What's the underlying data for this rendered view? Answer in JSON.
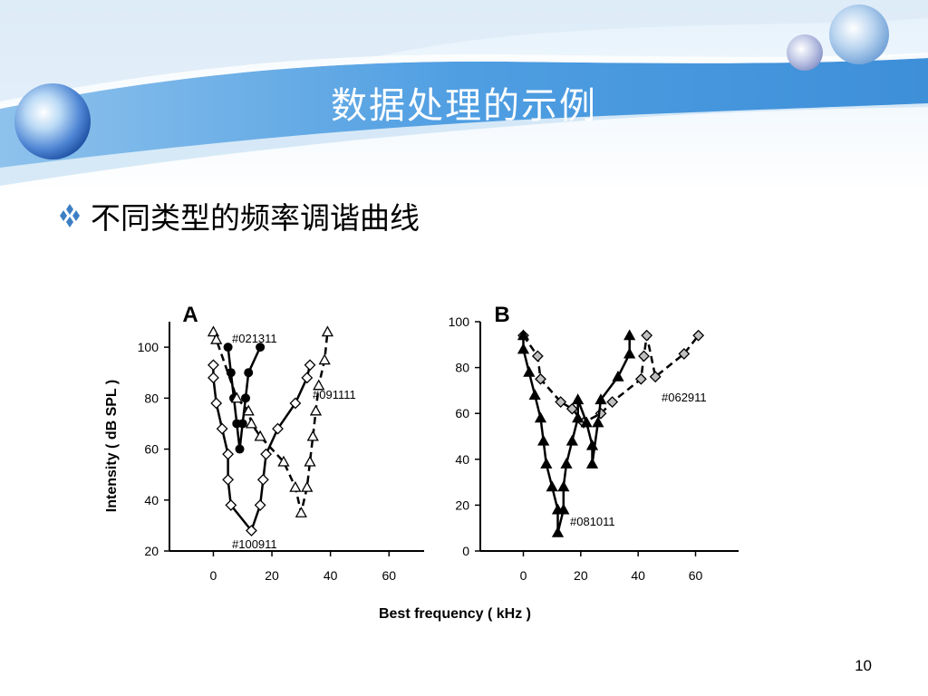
{
  "slide": {
    "title": "数据处理的示例",
    "bullet": "不同类型的频率调谐曲线",
    "page_number": "10"
  },
  "chart_data": [
    {
      "type": "line",
      "panel_label": "A",
      "ylabel": "Intensity ( dB SPL )",
      "xlabel": "Best frequency ( kHz )",
      "xlim": [
        -15,
        72
      ],
      "ylim": [
        20,
        110
      ],
      "xticks": [
        0,
        20,
        40,
        60
      ],
      "yticks": [
        20,
        40,
        60,
        80,
        100
      ],
      "grid": false,
      "series": [
        {
          "name": "#021311",
          "marker": "circle",
          "fill": "#000000",
          "line": "solid",
          "points": [
            [
              5,
              100
            ],
            [
              6,
              90
            ],
            [
              7,
              80
            ],
            [
              8,
              70
            ],
            [
              9,
              60
            ],
            [
              10,
              70
            ],
            [
              11,
              80
            ],
            [
              12,
              90
            ],
            [
              16,
              100
            ]
          ]
        },
        {
          "name": "#100911",
          "marker": "diamond",
          "fill": "#ffffff",
          "line": "solid",
          "points": [
            [
              0,
              93
            ],
            [
              0,
              88
            ],
            [
              1,
              78
            ],
            [
              3,
              68
            ],
            [
              5,
              58
            ],
            [
              5,
              48
            ],
            [
              6,
              38
            ],
            [
              13,
              28
            ],
            [
              16,
              38
            ],
            [
              17,
              48
            ],
            [
              18,
              58
            ],
            [
              22,
              68
            ],
            [
              28,
              78
            ],
            [
              32,
              88
            ],
            [
              33,
              93
            ]
          ]
        },
        {
          "name": "#091111",
          "marker": "triangle-open",
          "fill": "#ffffff",
          "line": "dashed",
          "points": [
            [
              0,
              106
            ],
            [
              1,
              103
            ],
            [
              8,
              80
            ],
            [
              12,
              75
            ],
            [
              13,
              70
            ],
            [
              16,
              65
            ],
            [
              24,
              55
            ],
            [
              28,
              45
            ],
            [
              30,
              35
            ],
            [
              32,
              45
            ],
            [
              33,
              55
            ],
            [
              34,
              65
            ],
            [
              35,
              75
            ],
            [
              36,
              85
            ],
            [
              38,
              95
            ],
            [
              39,
              106
            ]
          ]
        }
      ],
      "annotations": [
        "#021311",
        "#091111",
        "#100911"
      ]
    },
    {
      "type": "line",
      "panel_label": "B",
      "ylabel": "",
      "xlabel": "Best frequency ( kHz )",
      "xlim": [
        -15,
        75
      ],
      "ylim": [
        0,
        100
      ],
      "xticks": [
        0,
        20,
        40,
        60
      ],
      "yticks": [
        0,
        20,
        40,
        60,
        80,
        100
      ],
      "grid": false,
      "series": [
        {
          "name": "#062911",
          "marker": "diamond",
          "fill": "#c0c0c0",
          "line": "dashed",
          "points": [
            [
              0,
              94
            ],
            [
              5,
              85
            ],
            [
              6,
              75
            ],
            [
              13,
              65
            ],
            [
              17,
              62
            ],
            [
              21,
              56
            ],
            [
              27,
              60
            ],
            [
              31,
              65
            ],
            [
              41,
              75
            ],
            [
              42,
              85
            ],
            [
              43,
              94
            ],
            [
              46,
              76
            ],
            [
              56,
              86
            ],
            [
              61,
              94
            ]
          ]
        },
        {
          "name": "#081011",
          "marker": "triangle",
          "fill": "#000000",
          "line": "solid",
          "points": [
            [
              0,
              94
            ],
            [
              0,
              88
            ],
            [
              2,
              78
            ],
            [
              4,
              68
            ],
            [
              6,
              58
            ],
            [
              7,
              48
            ],
            [
              8,
              38
            ],
            [
              10,
              28
            ],
            [
              12,
              18
            ],
            [
              12,
              8
            ],
            [
              14,
              18
            ],
            [
              14,
              28
            ],
            [
              15,
              38
            ],
            [
              17,
              48
            ],
            [
              19,
              58
            ],
            [
              19,
              66
            ],
            [
              22,
              56
            ],
            [
              24,
              46
            ],
            [
              24,
              38
            ],
            [
              26,
              56
            ],
            [
              27,
              66
            ],
            [
              33,
              76
            ],
            [
              37,
              86
            ],
            [
              37,
              94
            ]
          ]
        }
      ],
      "annotations": [
        "#062911",
        "#081011"
      ]
    }
  ]
}
